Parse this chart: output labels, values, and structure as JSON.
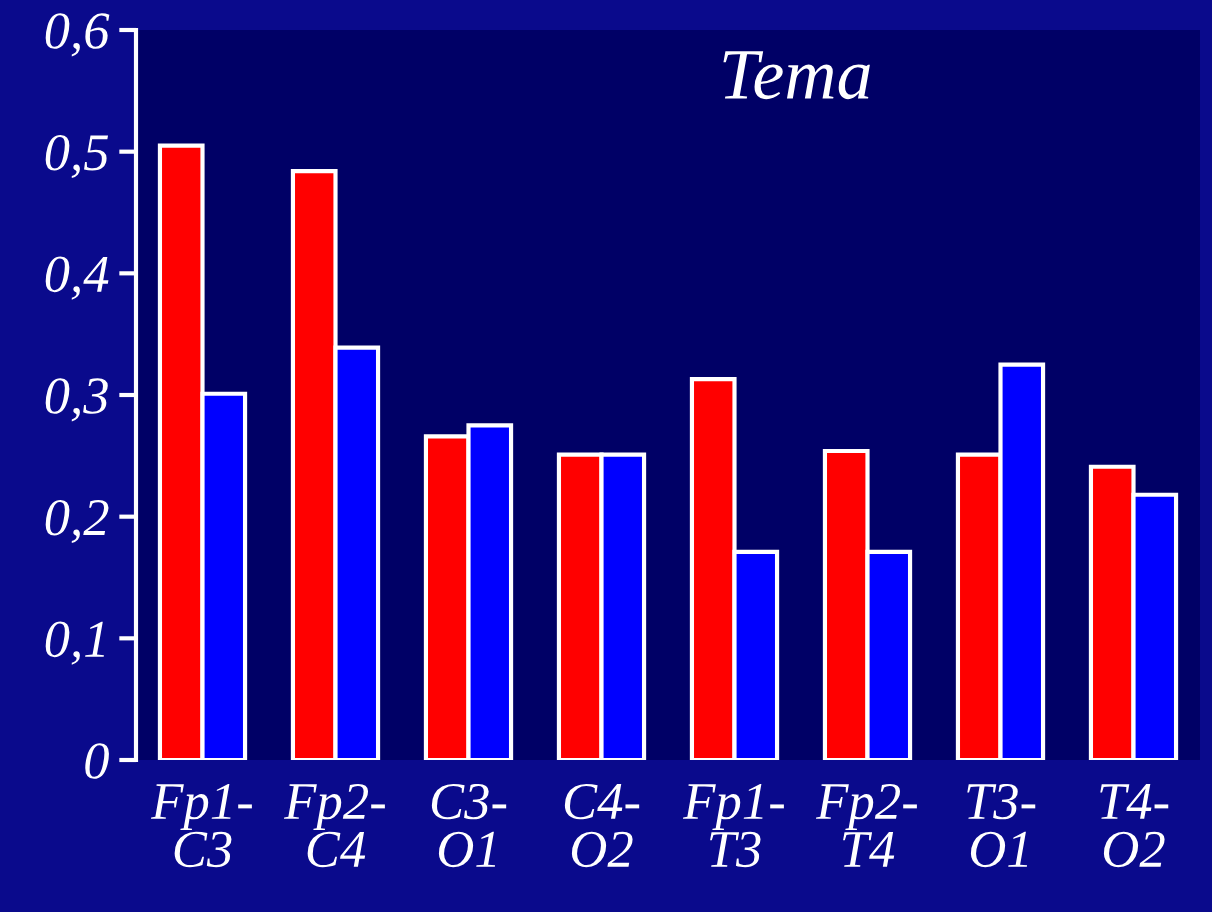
{
  "chart_data": {
    "type": "bar",
    "title": "Tema",
    "categories": [
      "Fp1-\nC3",
      "Fp2-\nC4",
      "C3-\nO1",
      "C4-\nO2",
      "Fp1-\nT3",
      "Fp2-\nT4",
      "T3-\nO1",
      "T4-\nO2"
    ],
    "series": [
      {
        "color": "#ff0000",
        "values": [
          0.505,
          0.484,
          0.266,
          0.251,
          0.313,
          0.254,
          0.251,
          0.241
        ]
      },
      {
        "color": "#0000ff",
        "values": [
          0.301,
          0.339,
          0.275,
          0.251,
          0.171,
          0.171,
          0.325,
          0.218
        ]
      }
    ],
    "ylim": [
      0,
      0.6
    ],
    "yticks": [
      {
        "value": 0,
        "label": "0"
      },
      {
        "value": 0.1,
        "label": "0,1"
      },
      {
        "value": 0.2,
        "label": "0,2"
      },
      {
        "value": 0.3,
        "label": "0,3"
      },
      {
        "value": 0.4,
        "label": "0,4"
      },
      {
        "value": 0.5,
        "label": "0,5"
      },
      {
        "value": 0.6,
        "label": "0,6"
      }
    ],
    "grid": false,
    "legend": false
  }
}
